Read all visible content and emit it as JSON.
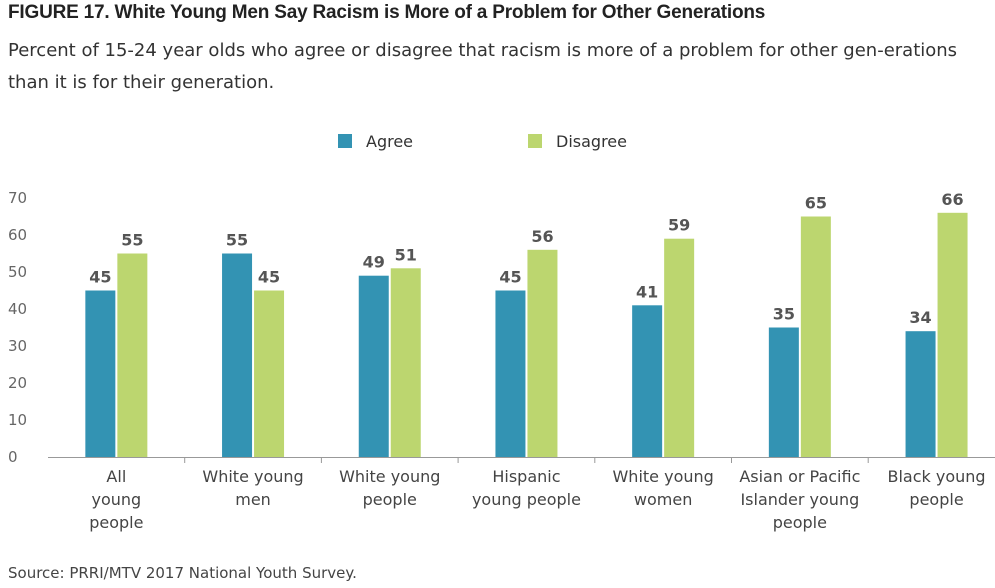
{
  "header": {
    "title": "FIGURE 17. White Young Men Say Racism is More of a Problem for Other Generations",
    "subtitle": "Percent of 15-24 year olds who agree or disagree that racism is more of a problem for other gen-erations than it is for their generation."
  },
  "source": "Source: PRRI/MTV 2017 National Youth Survey.",
  "chart_data": {
    "type": "bar",
    "categories": [
      "All young people",
      "White young men",
      "White young people",
      "Hispanic young people",
      "White young women",
      "Asian or Pacific Islander young people",
      "Black young people"
    ],
    "category_lines": [
      [
        "All",
        "young",
        "people"
      ],
      [
        "White young",
        "men"
      ],
      [
        "White young",
        "people"
      ],
      [
        "Hispanic",
        "young people"
      ],
      [
        "White young",
        "women"
      ],
      [
        "Asian or Pacific",
        "Islander young",
        "people"
      ],
      [
        "Black young",
        "people"
      ]
    ],
    "series": [
      {
        "name": "Agree",
        "color": "#3393b3",
        "values": [
          45,
          55,
          49,
          45,
          41,
          35,
          34
        ]
      },
      {
        "name": "Disagree",
        "color": "#bcd66f",
        "values": [
          55,
          45,
          51,
          56,
          59,
          65,
          66
        ]
      }
    ],
    "ylim": [
      0,
      70
    ],
    "yticks": [
      0,
      10,
      20,
      30,
      40,
      50,
      60,
      70
    ],
    "grid": false,
    "legend": "top-center"
  }
}
